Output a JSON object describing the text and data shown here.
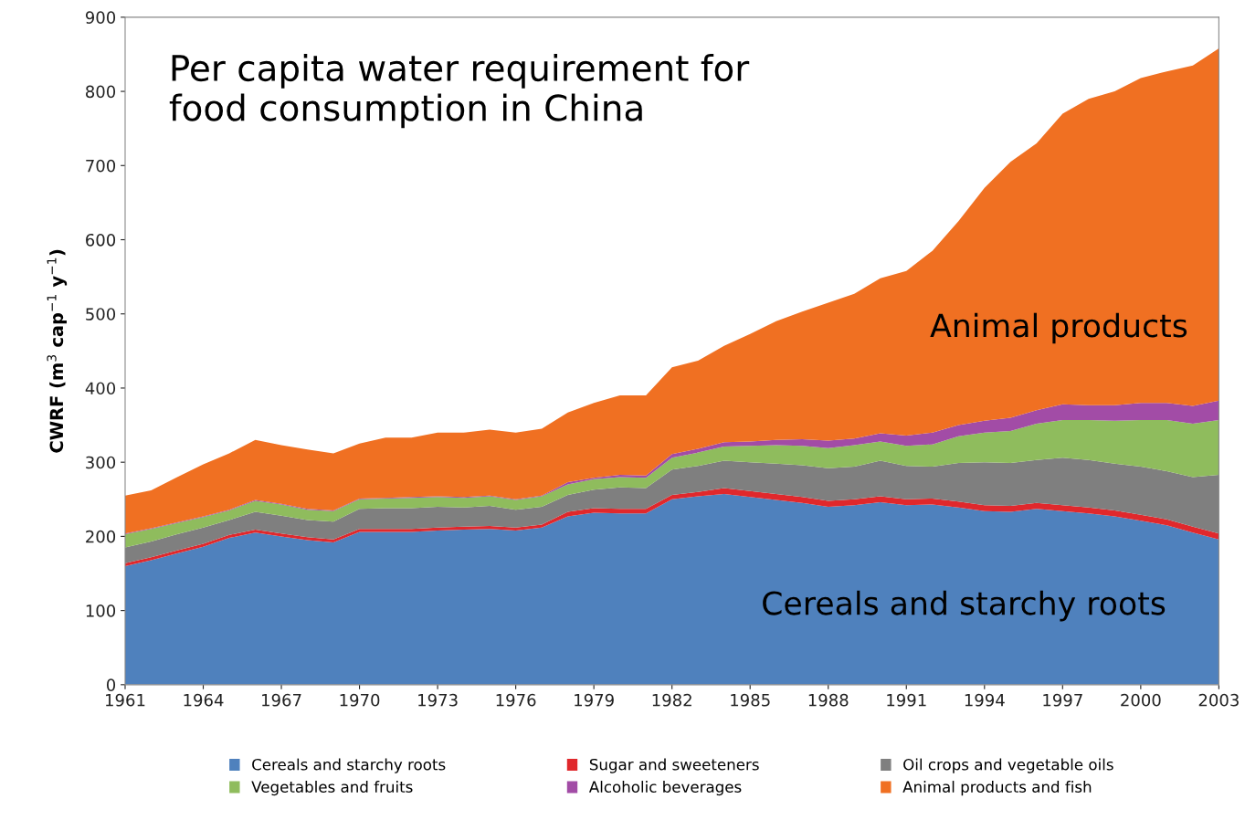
{
  "chart_data": {
    "type": "area",
    "stacked": true,
    "title": "Per capita water requirement for\nfood consumption in China",
    "ylabel": "CWRF (m$^{3}$ cap$^{−1}$ y$^{−1}$)",
    "x": [
      1961,
      1962,
      1963,
      1964,
      1965,
      1966,
      1967,
      1968,
      1969,
      1970,
      1971,
      1972,
      1973,
      1974,
      1975,
      1976,
      1977,
      1978,
      1979,
      1980,
      1981,
      1982,
      1983,
      1984,
      1985,
      1986,
      1987,
      1988,
      1989,
      1990,
      1991,
      1992,
      1993,
      1994,
      1995,
      1996,
      1997,
      1998,
      1999,
      2000,
      2001,
      2002,
      2003
    ],
    "series": [
      {
        "name": "Cereals and starchy roots",
        "color": "#4f81bd",
        "values": [
          160,
          168,
          177,
          186,
          198,
          205,
          200,
          195,
          192,
          206,
          206,
          206,
          208,
          209,
          210,
          208,
          212,
          227,
          232,
          231,
          231,
          250,
          254,
          257,
          253,
          249,
          245,
          240,
          242,
          246,
          242,
          243,
          239,
          234,
          233,
          237,
          234,
          231,
          227,
          221,
          215,
          205,
          196
        ]
      },
      {
        "name": "Sugar and sweeteners",
        "color": "#e0282c",
        "values": [
          4,
          4,
          4,
          4,
          4,
          4,
          4,
          4,
          4,
          4,
          4,
          4,
          4,
          4,
          4,
          4,
          4,
          6,
          6,
          6,
          6,
          6,
          6,
          8,
          8,
          8,
          8,
          8,
          8,
          8,
          8,
          8,
          8,
          8,
          8,
          8,
          8,
          8,
          8,
          8,
          8,
          8,
          8
        ]
      },
      {
        "name": "Oil crops and vegetable oils",
        "color": "#7f7f7f",
        "values": [
          21,
          21,
          22,
          22,
          20,
          24,
          24,
          23,
          24,
          27,
          28,
          28,
          28,
          26,
          27,
          24,
          24,
          23,
          25,
          29,
          28,
          34,
          35,
          37,
          39,
          41,
          43,
          44,
          44,
          48,
          45,
          43,
          52,
          58,
          58,
          58,
          64,
          64,
          63,
          65,
          65,
          67,
          79
        ]
      },
      {
        "name": "Vegetables and fruits",
        "color": "#8fbc5d",
        "values": [
          18,
          17,
          15,
          14,
          13,
          15,
          15,
          14,
          14,
          13,
          13,
          14,
          13,
          13,
          13,
          13,
          14,
          14,
          14,
          14,
          14,
          16,
          18,
          19,
          22,
          25,
          26,
          27,
          29,
          26,
          27,
          30,
          36,
          40,
          43,
          49,
          51,
          54,
          58,
          63,
          69,
          72,
          74
        ]
      },
      {
        "name": "Alcoholic beverages",
        "color": "#a24ca6",
        "values": [
          1,
          1,
          1,
          1,
          1,
          1,
          1,
          1,
          1,
          1,
          1,
          1,
          1,
          1,
          1,
          1,
          1,
          3,
          2,
          3,
          3,
          5,
          5,
          6,
          6,
          7,
          9,
          10,
          9,
          11,
          14,
          16,
          15,
          16,
          18,
          18,
          21,
          20,
          21,
          23,
          23,
          24,
          26
        ]
      },
      {
        "name": "Animal products and fish",
        "color": "#f07022",
        "values": [
          51,
          51,
          61,
          70,
          76,
          81,
          79,
          80,
          77,
          74,
          81,
          80,
          86,
          87,
          89,
          90,
          90,
          94,
          101,
          107,
          108,
          117,
          119,
          130,
          145,
          160,
          172,
          186,
          195,
          209,
          222,
          245,
          275,
          314,
          345,
          360,
          392,
          413,
          423,
          438,
          447,
          459,
          475
        ]
      }
    ],
    "xlim": [
      1961,
      2003
    ],
    "xticks": [
      1961,
      1964,
      1967,
      1970,
      1973,
      1976,
      1979,
      1982,
      1985,
      1988,
      1991,
      1994,
      1997,
      2000,
      2003
    ],
    "ylim": [
      0,
      900
    ],
    "yticks": [
      0,
      100,
      200,
      300,
      400,
      500,
      600,
      700,
      800,
      900
    ],
    "annotations": [
      "Animal products",
      "Cereals and starchy roots"
    ],
    "grid": false,
    "legend": "bottom"
  }
}
